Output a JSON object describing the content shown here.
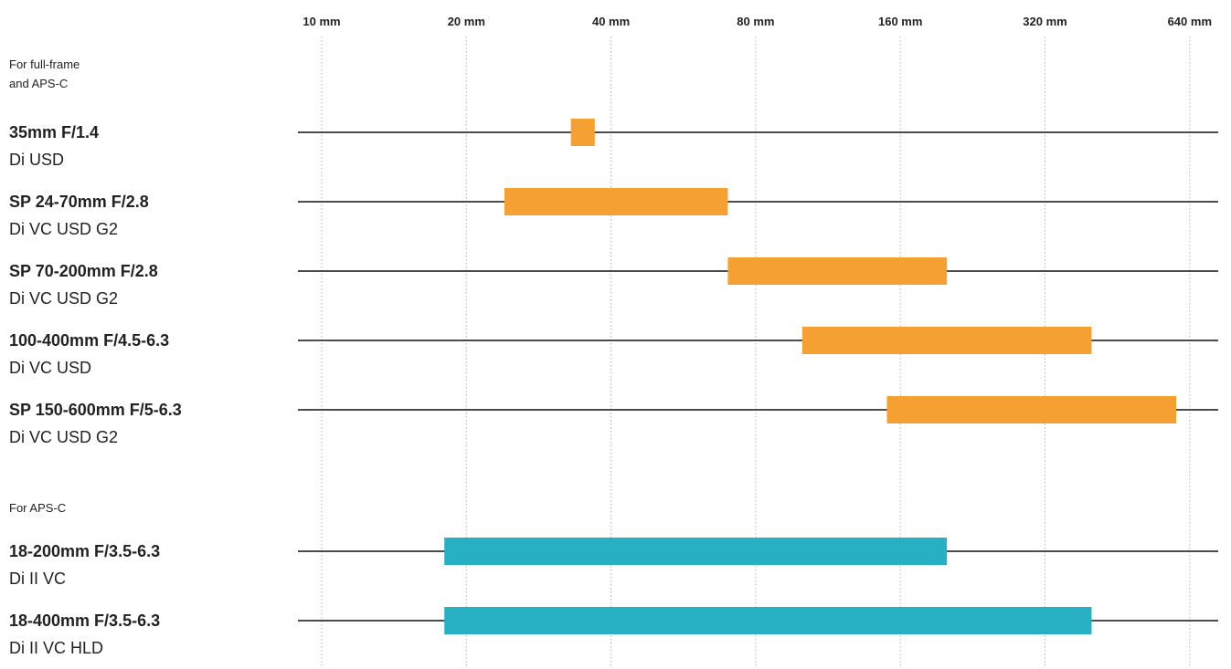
{
  "chart_data": {
    "type": "bar",
    "orientation": "horizontal",
    "description_axis": "focal length, log scale (base 2)",
    "x_scale": "log",
    "xlim": [
      10,
      640
    ],
    "x_ticks": [
      10,
      20,
      40,
      80,
      160,
      320,
      640
    ],
    "x_tick_labels": [
      "10 mm",
      "20 mm",
      "40 mm",
      "80 mm",
      "160 mm",
      "320 mm",
      "640 mm"
    ],
    "grid": "vertical dotted",
    "groups": [
      {
        "label": "For full-frame\nand APS-C",
        "color": "#F5A033",
        "lenses": [
          {
            "name": "35mm F/1.4",
            "sub": "Di USD",
            "min": 33,
            "max": 37
          },
          {
            "name": "SP 24-70mm F/2.8",
            "sub": "Di VC USD G2",
            "min": 24,
            "max": 70
          },
          {
            "name": "SP 70-200mm F/2.8",
            "sub": "Di VC USD G2",
            "min": 70,
            "max": 200
          },
          {
            "name": "100-400mm F/4.5-6.3",
            "sub": "Di VC USD",
            "min": 100,
            "max": 400
          },
          {
            "name": "SP 150-600mm F/5-6.3",
            "sub": "Di VC USD G2",
            "min": 150,
            "max": 600
          }
        ]
      },
      {
        "label": "For APS-C",
        "color": "#27AFC3",
        "lenses": [
          {
            "name": "18-200mm F/3.5-6.3",
            "sub": "Di II VC",
            "min": 18,
            "max": 200
          },
          {
            "name": "18-400mm F/3.5-6.3",
            "sub": "Di II VC HLD",
            "min": 18,
            "max": 400
          }
        ]
      }
    ]
  }
}
